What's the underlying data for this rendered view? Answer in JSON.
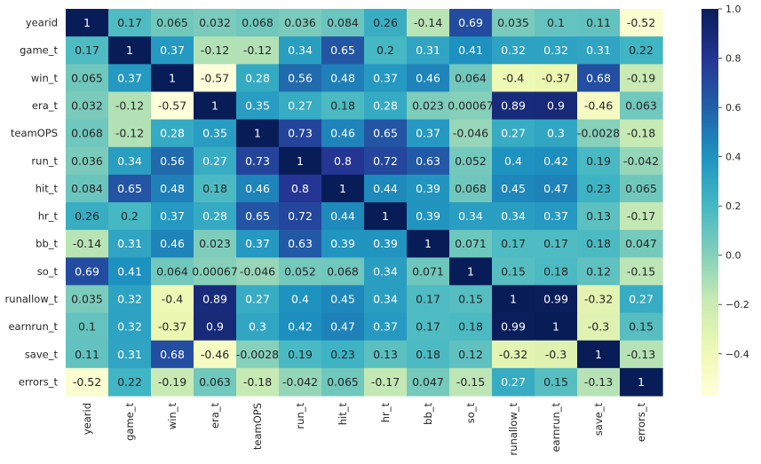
{
  "chart_data": {
    "type": "heatmap",
    "title": "",
    "xlabel": "",
    "ylabel": "",
    "labels": [
      "yearid",
      "game_t",
      "win_t",
      "era_t",
      "teamOPS",
      "run_t",
      "hit_t",
      "hr_t",
      "bb_t",
      "so_t",
      "runallow_t",
      "earnrun_t",
      "save_t",
      "errors_t"
    ],
    "display": [
      [
        "1",
        "0.17",
        "0.065",
        "0.032",
        "0.068",
        "0.036",
        "0.084",
        "0.26",
        "-0.14",
        "0.69",
        "0.035",
        "0.1",
        "0.11",
        "-0.52"
      ],
      [
        "0.17",
        "1",
        "0.37",
        "-0.12",
        "-0.12",
        "0.34",
        "0.65",
        "0.2",
        "0.31",
        "0.41",
        "0.32",
        "0.32",
        "0.31",
        "0.22"
      ],
      [
        "0.065",
        "0.37",
        "1",
        "-0.57",
        "0.28",
        "0.56",
        "0.48",
        "0.37",
        "0.46",
        "0.064",
        "-0.4",
        "-0.37",
        "0.68",
        "-0.19"
      ],
      [
        "0.032",
        "-0.12",
        "-0.57",
        "1",
        "0.35",
        "0.27",
        "0.18",
        "0.28",
        "0.023",
        "0.00067",
        "0.89",
        "0.9",
        "-0.46",
        "0.063"
      ],
      [
        "0.068",
        "-0.12",
        "0.28",
        "0.35",
        "1",
        "0.73",
        "0.46",
        "0.65",
        "0.37",
        "-0.046",
        "0.27",
        "0.3",
        "-0.0028",
        "-0.18"
      ],
      [
        "0.036",
        "0.34",
        "0.56",
        "0.27",
        "0.73",
        "1",
        "0.8",
        "0.72",
        "0.63",
        "0.052",
        "0.4",
        "0.42",
        "0.19",
        "-0.042"
      ],
      [
        "0.084",
        "0.65",
        "0.48",
        "0.18",
        "0.46",
        "0.8",
        "1",
        "0.44",
        "0.39",
        "0.068",
        "0.45",
        "0.47",
        "0.23",
        "0.065"
      ],
      [
        "0.26",
        "0.2",
        "0.37",
        "0.28",
        "0.65",
        "0.72",
        "0.44",
        "1",
        "0.39",
        "0.34",
        "0.34",
        "0.37",
        "0.13",
        "-0.17"
      ],
      [
        "-0.14",
        "0.31",
        "0.46",
        "0.023",
        "0.37",
        "0.63",
        "0.39",
        "0.39",
        "1",
        "0.071",
        "0.17",
        "0.17",
        "0.18",
        "0.047"
      ],
      [
        "0.69",
        "0.41",
        "0.064",
        "0.00067",
        "-0.046",
        "0.052",
        "0.068",
        "0.34",
        "0.071",
        "1",
        "0.15",
        "0.18",
        "0.12",
        "-0.15"
      ],
      [
        "0.035",
        "0.32",
        "-0.4",
        "0.89",
        "0.27",
        "0.4",
        "0.45",
        "0.34",
        "0.17",
        "0.15",
        "1",
        "0.99",
        "-0.32",
        "0.27"
      ],
      [
        "0.1",
        "0.32",
        "-0.37",
        "0.9",
        "0.3",
        "0.42",
        "0.47",
        "0.37",
        "0.17",
        "0.18",
        "0.99",
        "1",
        "-0.3",
        "0.15"
      ],
      [
        "0.11",
        "0.31",
        "0.68",
        "-0.46",
        "-0.0028",
        "0.19",
        "0.23",
        "0.13",
        "0.18",
        "0.12",
        "-0.32",
        "-0.3",
        "1",
        "-0.13"
      ],
      [
        "-0.52",
        "0.22",
        "-0.19",
        "0.063",
        "-0.18",
        "-0.042",
        "0.065",
        "-0.17",
        "0.047",
        "-0.15",
        "0.27",
        "0.15",
        "-0.13",
        "1"
      ]
    ],
    "vmin": -0.57,
    "vmax": 1.0,
    "colormap": "YlGnBu",
    "colorbar_ticks": [
      "1.0",
      "0.8",
      "0.6",
      "0.4",
      "0.2",
      "0.0",
      "−0.2",
      "−0.4"
    ],
    "colorbar_tick_values": [
      1.0,
      0.8,
      0.6,
      0.4,
      0.2,
      0.0,
      -0.2,
      -0.4
    ],
    "grid": false,
    "legend": "colorbar-right"
  }
}
